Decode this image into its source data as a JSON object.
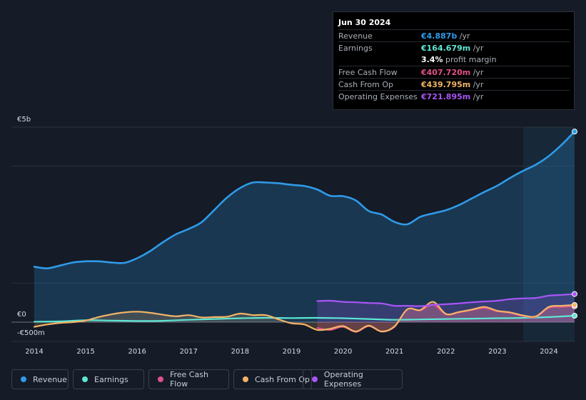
{
  "tooltip": {
    "date": "Jun 30 2024",
    "rows": [
      {
        "label": "Revenue",
        "value": "€4.887b",
        "unit": " /yr",
        "color": "#2f9be8"
      },
      {
        "label": "Earnings",
        "value": "€164.679m",
        "unit": " /yr",
        "color": "#5ee6d4"
      },
      {
        "label": "",
        "value": "3.4%",
        "unit": " profit margin",
        "color": "#ffffff"
      },
      {
        "label": "Free Cash Flow",
        "value": "€407.720m",
        "unit": " /yr",
        "color": "#e0508a"
      },
      {
        "label": "Cash From Op",
        "value": "€439.795m",
        "unit": " /yr",
        "color": "#f2b468"
      },
      {
        "label": "Operating Expenses",
        "value": "€721.895m",
        "unit": " /yr",
        "color": "#a855f7"
      }
    ]
  },
  "legend": [
    {
      "label": "Revenue",
      "color": "#2f9be8"
    },
    {
      "label": "Earnings",
      "color": "#5ee6d4"
    },
    {
      "label": "Free Cash Flow",
      "color": "#e0508a"
    },
    {
      "label": "Cash From Op",
      "color": "#f2b468"
    },
    {
      "label": "Operating Expenses",
      "color": "#a855f7"
    }
  ],
  "chart_data": {
    "type": "area",
    "title": "",
    "xlabel": "",
    "ylabel": "",
    "x_ticks": [
      "2014",
      "2015",
      "2016",
      "2017",
      "2018",
      "2019",
      "2020",
      "2021",
      "2022",
      "2023",
      "2024"
    ],
    "y_tick_labels": [
      {
        "label": "€5b",
        "value": 5000
      },
      {
        "label": "€0",
        "value": 0
      },
      {
        "label": "-€500m",
        "value": -500
      }
    ],
    "ylim": [
      -500,
      5000
    ],
    "xlim": [
      2013.5,
      2024.5
    ],
    "forecast_start": 2023.5,
    "units": "€ millions",
    "series": [
      {
        "name": "Revenue",
        "color": "#2f9be8",
        "fill": true,
        "points": [
          [
            2014.0,
            1420
          ],
          [
            2014.25,
            1380
          ],
          [
            2014.5,
            1450
          ],
          [
            2014.75,
            1530
          ],
          [
            2015.0,
            1560
          ],
          [
            2015.25,
            1560
          ],
          [
            2015.5,
            1530
          ],
          [
            2015.75,
            1520
          ],
          [
            2016.0,
            1640
          ],
          [
            2016.25,
            1820
          ],
          [
            2016.5,
            2050
          ],
          [
            2016.75,
            2250
          ],
          [
            2017.0,
            2390
          ],
          [
            2017.25,
            2560
          ],
          [
            2017.5,
            2880
          ],
          [
            2017.75,
            3200
          ],
          [
            2018.0,
            3440
          ],
          [
            2018.25,
            3580
          ],
          [
            2018.5,
            3580
          ],
          [
            2018.75,
            3560
          ],
          [
            2019.0,
            3520
          ],
          [
            2019.25,
            3490
          ],
          [
            2019.5,
            3400
          ],
          [
            2019.75,
            3240
          ],
          [
            2020.0,
            3230
          ],
          [
            2020.25,
            3120
          ],
          [
            2020.5,
            2850
          ],
          [
            2020.75,
            2760
          ],
          [
            2021.0,
            2570
          ],
          [
            2021.25,
            2510
          ],
          [
            2021.5,
            2700
          ],
          [
            2021.75,
            2790
          ],
          [
            2022.0,
            2870
          ],
          [
            2022.25,
            3000
          ],
          [
            2022.5,
            3170
          ],
          [
            2022.75,
            3340
          ],
          [
            2023.0,
            3500
          ],
          [
            2023.25,
            3700
          ],
          [
            2023.5,
            3880
          ],
          [
            2023.75,
            4040
          ],
          [
            2024.0,
            4260
          ],
          [
            2024.25,
            4550
          ],
          [
            2024.5,
            4887
          ]
        ]
      },
      {
        "name": "Earnings",
        "color": "#5ee6d4",
        "fill": false,
        "points": [
          [
            2014.0,
            10
          ],
          [
            2014.5,
            20
          ],
          [
            2015.0,
            50
          ],
          [
            2015.5,
            40
          ],
          [
            2016.0,
            30
          ],
          [
            2016.5,
            35
          ],
          [
            2017.0,
            60
          ],
          [
            2017.5,
            80
          ],
          [
            2018.0,
            100
          ],
          [
            2018.5,
            110
          ],
          [
            2019.0,
            105
          ],
          [
            2019.5,
            110
          ],
          [
            2020.0,
            100
          ],
          [
            2020.5,
            80
          ],
          [
            2021.0,
            60
          ],
          [
            2021.5,
            70
          ],
          [
            2022.0,
            80
          ],
          [
            2022.5,
            90
          ],
          [
            2023.0,
            100
          ],
          [
            2023.5,
            110
          ],
          [
            2024.0,
            130
          ],
          [
            2024.5,
            164.679
          ]
        ]
      },
      {
        "name": "Free Cash Flow",
        "color": "#e0508a",
        "fill": true,
        "points": [
          [
            2019.5,
            -150
          ],
          [
            2019.75,
            -200
          ],
          [
            2020.0,
            -120
          ],
          [
            2020.25,
            -250
          ],
          [
            2020.5,
            -100
          ],
          [
            2020.75,
            -240
          ],
          [
            2021.0,
            -120
          ],
          [
            2021.25,
            330
          ],
          [
            2021.5,
            300
          ],
          [
            2021.75,
            450
          ],
          [
            2022.0,
            200
          ],
          [
            2022.25,
            250
          ],
          [
            2022.5,
            310
          ],
          [
            2022.75,
            360
          ],
          [
            2023.0,
            280
          ],
          [
            2023.25,
            240
          ],
          [
            2023.5,
            160
          ],
          [
            2023.75,
            140
          ],
          [
            2024.0,
            370
          ],
          [
            2024.25,
            390
          ],
          [
            2024.5,
            407.72
          ]
        ]
      },
      {
        "name": "Cash From Op",
        "color": "#f2b468",
        "fill": true,
        "points": [
          [
            2014.0,
            -120
          ],
          [
            2014.25,
            -60
          ],
          [
            2014.5,
            -20
          ],
          [
            2014.75,
            0
          ],
          [
            2015.0,
            40
          ],
          [
            2015.25,
            130
          ],
          [
            2015.5,
            200
          ],
          [
            2015.75,
            250
          ],
          [
            2016.0,
            270
          ],
          [
            2016.25,
            240
          ],
          [
            2016.5,
            190
          ],
          [
            2016.75,
            150
          ],
          [
            2017.0,
            180
          ],
          [
            2017.25,
            120
          ],
          [
            2017.5,
            130
          ],
          [
            2017.75,
            140
          ],
          [
            2018.0,
            220
          ],
          [
            2018.25,
            180
          ],
          [
            2018.5,
            180
          ],
          [
            2018.75,
            70
          ],
          [
            2019.0,
            -30
          ],
          [
            2019.25,
            -60
          ],
          [
            2019.5,
            -200
          ],
          [
            2019.75,
            -170
          ],
          [
            2020.0,
            -100
          ],
          [
            2020.25,
            -240
          ],
          [
            2020.5,
            -90
          ],
          [
            2020.75,
            -240
          ],
          [
            2021.0,
            -110
          ],
          [
            2021.25,
            330
          ],
          [
            2021.5,
            310
          ],
          [
            2021.75,
            520
          ],
          [
            2022.0,
            210
          ],
          [
            2022.25,
            260
          ],
          [
            2022.5,
            320
          ],
          [
            2022.75,
            390
          ],
          [
            2023.0,
            290
          ],
          [
            2023.25,
            250
          ],
          [
            2023.5,
            170
          ],
          [
            2023.75,
            150
          ],
          [
            2024.0,
            390
          ],
          [
            2024.25,
            420
          ],
          [
            2024.5,
            439.795
          ]
        ]
      },
      {
        "name": "Operating Expenses",
        "color": "#a855f7",
        "fill": true,
        "points": [
          [
            2019.5,
            540
          ],
          [
            2019.75,
            550
          ],
          [
            2020.0,
            520
          ],
          [
            2020.25,
            510
          ],
          [
            2020.5,
            490
          ],
          [
            2020.75,
            480
          ],
          [
            2021.0,
            420
          ],
          [
            2021.25,
            420
          ],
          [
            2021.5,
            410
          ],
          [
            2021.75,
            440
          ],
          [
            2022.0,
            460
          ],
          [
            2022.25,
            480
          ],
          [
            2022.5,
            510
          ],
          [
            2022.75,
            530
          ],
          [
            2023.0,
            550
          ],
          [
            2023.25,
            590
          ],
          [
            2023.5,
            610
          ],
          [
            2023.75,
            620
          ],
          [
            2024.0,
            680
          ],
          [
            2024.25,
            700
          ],
          [
            2024.5,
            721.895
          ]
        ]
      }
    ]
  }
}
